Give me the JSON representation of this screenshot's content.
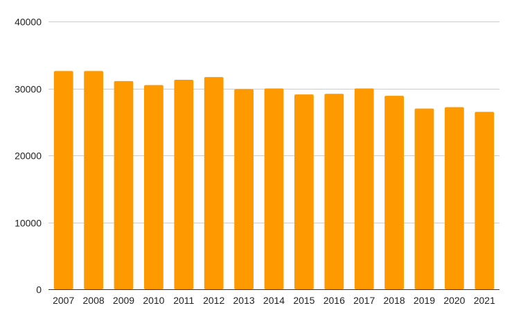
{
  "chart_data": {
    "type": "bar",
    "title": "",
    "xlabel": "",
    "ylabel": "",
    "categories": [
      "2007",
      "2008",
      "2009",
      "2010",
      "2011",
      "2012",
      "2013",
      "2014",
      "2015",
      "2016",
      "2017",
      "2018",
      "2019",
      "2020",
      "2021"
    ],
    "values": [
      32600,
      32600,
      31100,
      30500,
      31300,
      31700,
      29900,
      30000,
      29100,
      29200,
      30000,
      28900,
      27000,
      27200,
      26500
    ],
    "ylim": [
      0,
      40000
    ],
    "yticks": [
      0,
      10000,
      20000,
      30000,
      40000
    ],
    "grid": true,
    "legend": "none",
    "colors": {
      "bar": "#ff9900",
      "grid": "#cccccc",
      "axis": "#333333",
      "text": "#222222"
    }
  }
}
